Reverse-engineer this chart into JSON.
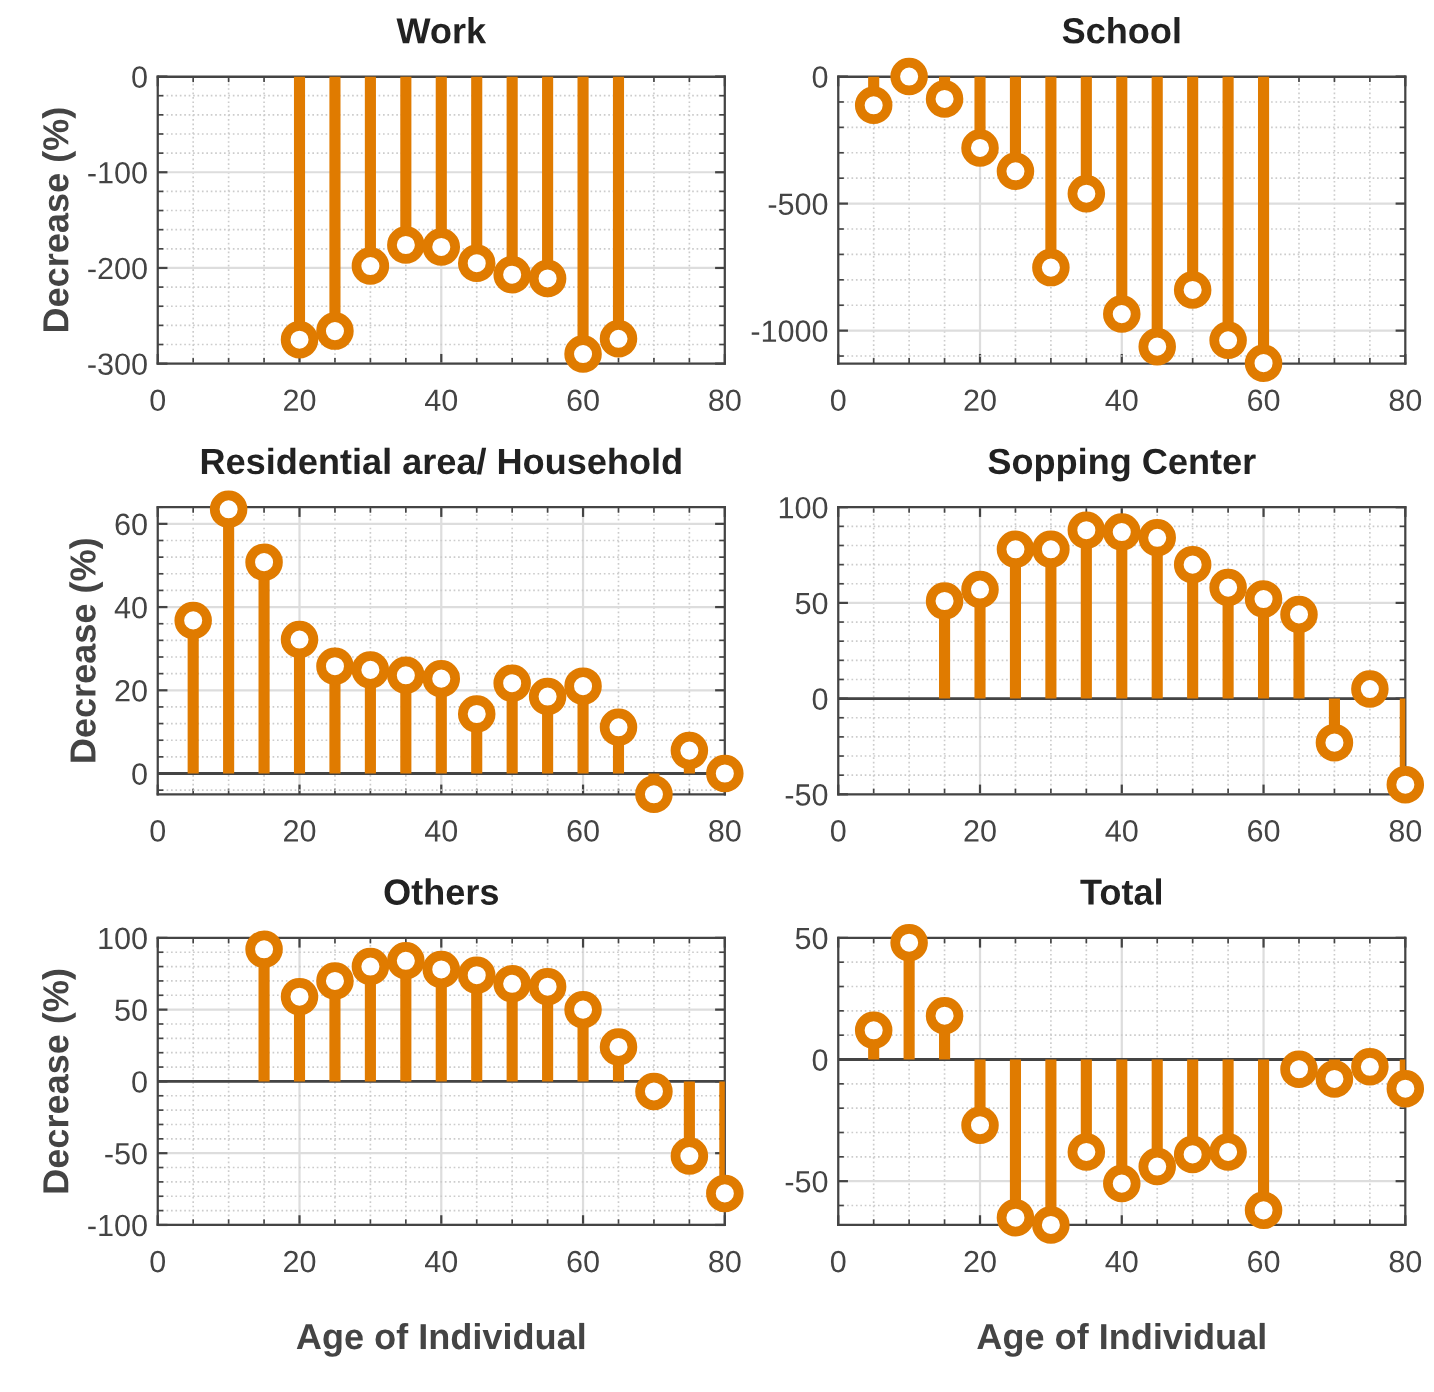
{
  "chart_data": [
    {
      "type": "lollipop",
      "title": "Work",
      "ylabel": "Decrease (%)",
      "x": [
        20,
        25,
        30,
        35,
        40,
        45,
        50,
        55,
        60,
        65
      ],
      "values": [
        -275,
        -266,
        -198,
        -176,
        -178,
        -195,
        -207,
        -211,
        -290,
        -274
      ],
      "color": "#e07b00",
      "xlim": [
        0,
        80
      ],
      "xticks": [
        0,
        20,
        40,
        60,
        80
      ],
      "ylim": [
        -300,
        0
      ],
      "yticks": [
        -300,
        -200,
        -100,
        0
      ],
      "grid": true,
      "marker": "circle"
    },
    {
      "type": "lollipop",
      "title": "School",
      "x": [
        5,
        10,
        15,
        20,
        25,
        30,
        35,
        40,
        45,
        50,
        55,
        60
      ],
      "values": [
        -113,
        0,
        -88,
        -281,
        -373,
        -752,
        -461,
        -935,
        -1063,
        -840,
        -1038,
        -1128
      ],
      "color": "#e07b00",
      "xlim": [
        0,
        80
      ],
      "xticks": [
        0,
        20,
        40,
        60,
        80
      ],
      "ylim": [
        -1130,
        0
      ],
      "yticks": [
        -1000,
        -500,
        0
      ],
      "grid": true,
      "marker": "circle"
    },
    {
      "type": "lollipop",
      "title": "Residential area/ Household",
      "ylabel": "Decrease (%)",
      "x": [
        5,
        10,
        15,
        20,
        25,
        30,
        35,
        40,
        45,
        50,
        55,
        60,
        65,
        70,
        75,
        80
      ],
      "values": [
        36.8,
        63.5,
        50.8,
        32.2,
        25.8,
        24.9,
        23.6,
        22.8,
        14.3,
        21.7,
        18.5,
        21,
        11.1,
        -5,
        5.5,
        0
      ],
      "color": "#e07b00",
      "xlim": [
        0,
        80
      ],
      "xticks": [
        0,
        20,
        40,
        60,
        80
      ],
      "ylim": [
        -5,
        64
      ],
      "yticks": [
        0,
        20,
        40,
        60
      ],
      "grid": true,
      "marker": "circle"
    },
    {
      "type": "lollipop",
      "title": "Sopping Center",
      "x": [
        15,
        20,
        25,
        30,
        35,
        40,
        45,
        50,
        55,
        60,
        65,
        70,
        75,
        80
      ],
      "values": [
        51,
        57,
        78,
        78,
        88,
        87,
        84,
        70,
        58,
        52,
        44,
        -23,
        5,
        -45
      ],
      "color": "#e07b00",
      "xlim": [
        0,
        80
      ],
      "xticks": [
        0,
        20,
        40,
        60,
        80
      ],
      "ylim": [
        -50,
        100
      ],
      "yticks": [
        -50,
        0,
        50,
        100
      ],
      "grid": true,
      "marker": "circle"
    },
    {
      "type": "lollipop",
      "title": "Others",
      "ylabel": "Decrease (%)",
      "xlabel": "Age of Individual",
      "x": [
        15,
        20,
        25,
        30,
        35,
        40,
        45,
        50,
        55,
        60,
        65,
        70,
        75,
        80
      ],
      "values": [
        92,
        59,
        70,
        80,
        84,
        78,
        74,
        68,
        66,
        50,
        24,
        -7,
        -52,
        -78
      ],
      "color": "#e07b00",
      "xlim": [
        0,
        80
      ],
      "xticks": [
        0,
        20,
        40,
        60,
        80
      ],
      "ylim": [
        -100,
        100
      ],
      "yticks": [
        -100,
        -50,
        0,
        50,
        100
      ],
      "grid": true,
      "marker": "circle"
    },
    {
      "type": "lollipop",
      "title": "Total",
      "xlabel": "Age of Individual",
      "x": [
        5,
        10,
        15,
        20,
        25,
        30,
        35,
        40,
        45,
        50,
        55,
        60,
        65,
        70,
        75,
        80
      ],
      "values": [
        12,
        48,
        18,
        -27,
        -65,
        -68,
        -38,
        -51,
        -44,
        -39,
        -38,
        -62,
        -4,
        -8,
        -3,
        -12
      ],
      "color": "#e07b00",
      "xlim": [
        0,
        80
      ],
      "xticks": [
        0,
        20,
        40,
        60,
        80
      ],
      "ylim": [
        -68,
        50
      ],
      "yticks": [
        -50,
        0,
        50
      ],
      "grid": true,
      "marker": "circle"
    }
  ]
}
